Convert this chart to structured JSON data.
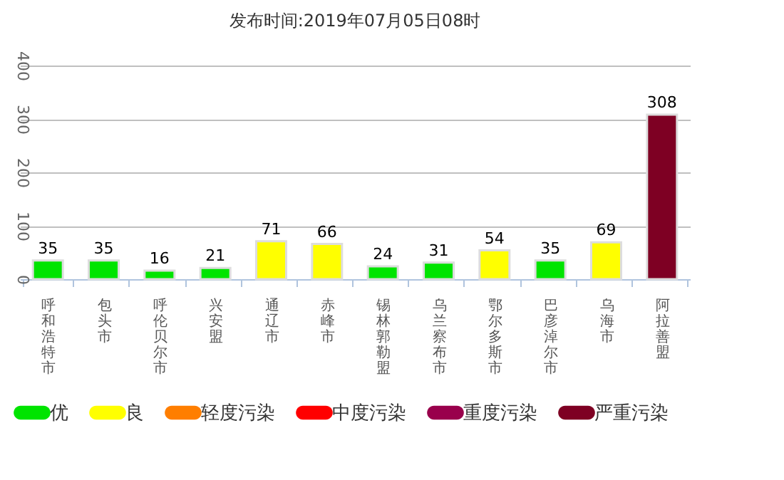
{
  "chart_data": {
    "type": "bar",
    "title": "发布时间:2019年07月05日08时",
    "categories": [
      "呼和浩特市",
      "包头市",
      "呼伦贝尔市",
      "兴安盟",
      "通辽市",
      "赤峰市",
      "锡林郭勒盟",
      "乌兰察布市",
      "鄂尔多斯市",
      "巴彦淖尔市",
      "乌海市",
      "阿拉善盟"
    ],
    "series": [
      {
        "name": "优",
        "color": "#00e400",
        "values": [
          35,
          35,
          16,
          21,
          null,
          null,
          24,
          31,
          null,
          35,
          null,
          null
        ]
      },
      {
        "name": "良",
        "color": "#ffff00",
        "values": [
          null,
          null,
          null,
          null,
          71,
          66,
          null,
          null,
          54,
          null,
          69,
          null
        ]
      },
      {
        "name": "轻度污染",
        "color": "#ff7e00",
        "values": [
          null,
          null,
          null,
          null,
          null,
          null,
          null,
          null,
          null,
          null,
          null,
          null
        ]
      },
      {
        "name": "中度污染",
        "color": "#ff0000",
        "values": [
          null,
          null,
          null,
          null,
          null,
          null,
          null,
          null,
          null,
          null,
          null,
          null
        ]
      },
      {
        "name": "重度污染",
        "color": "#99004c",
        "values": [
          null,
          null,
          null,
          null,
          null,
          null,
          null,
          null,
          null,
          null,
          null,
          null
        ]
      },
      {
        "name": "严重污染",
        "color": "#7e0023",
        "values": [
          null,
          null,
          null,
          null,
          null,
          null,
          null,
          null,
          null,
          null,
          null,
          308
        ]
      }
    ],
    "ylim": [
      0,
      400
    ],
    "yticks": [
      0,
      100,
      200,
      300,
      400
    ],
    "grid": "y",
    "legend": "bottom",
    "data_labels": true
  }
}
